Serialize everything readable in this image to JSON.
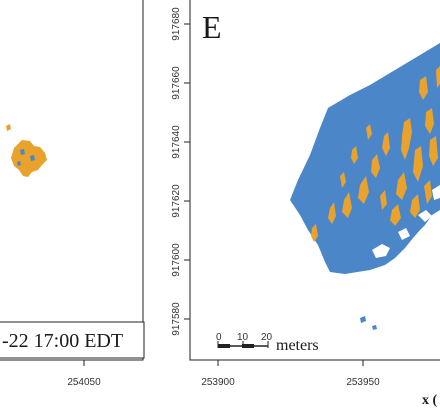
{
  "left_panel": {
    "x_tick_label": "254050",
    "timestamp_label": "-22 17:00 EDT"
  },
  "right_panel": {
    "panel_letter": "E",
    "y_tick_labels": [
      "917680",
      "917660",
      "917640",
      "917620",
      "917600",
      "917580"
    ],
    "x_tick_labels": [
      "253900",
      "253950"
    ],
    "x_axis_label_partial": "x (",
    "scale_bar": {
      "tick_labels": [
        "0",
        "10",
        "20"
      ],
      "unit_label": "meters"
    }
  },
  "colors": {
    "region_fill": "#4a86c8",
    "patch_fill": "#e9a32c",
    "frame": "#222222",
    "background": "#ffffff"
  }
}
